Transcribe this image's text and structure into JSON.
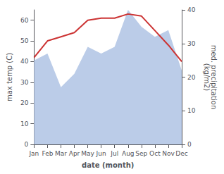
{
  "chart_data": {
    "type": "line",
    "categories": [
      "Jan",
      "Feb",
      "Mar",
      "Apr",
      "May",
      "Jun",
      "Jul",
      "Aug",
      "Sep",
      "Oct",
      "Nov",
      "Dec"
    ],
    "xlabel": "date (month)",
    "ylabel": "max temp (C)",
    "y2label": "med. precipitation\n(kg/m2)",
    "series": [
      {
        "type": "area",
        "axis": "y2",
        "color": "#bbcce8",
        "values": [
          25,
          27,
          17,
          21,
          29,
          27,
          29,
          40,
          35,
          32,
          34,
          22
        ]
      },
      {
        "type": "line",
        "color": "#cc3333",
        "values": [
          42,
          50,
          52,
          54,
          60,
          61,
          61,
          63,
          62,
          55,
          48,
          40
        ]
      }
    ],
    "ylim": [
      0,
      65
    ],
    "yticks": [
      0,
      10,
      20,
      30,
      40,
      50,
      60
    ],
    "y2lim": [
      0,
      40
    ],
    "y2ticks": [
      0,
      10,
      20,
      30,
      40
    ],
    "grid": false
  }
}
